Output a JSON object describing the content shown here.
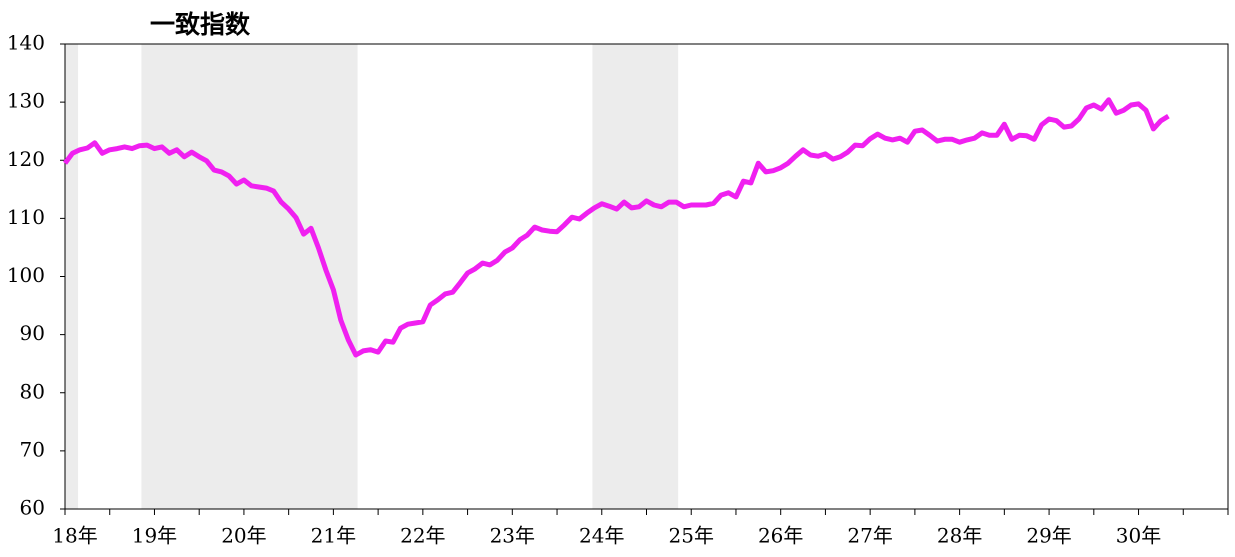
{
  "chart_data": {
    "type": "line",
    "title": "一致指数",
    "categories": [
      "18年",
      null,
      null,
      null,
      null,
      null,
      null,
      null,
      null,
      null,
      null,
      null,
      "19年",
      null,
      null,
      null,
      null,
      null,
      null,
      null,
      null,
      null,
      null,
      null,
      "20年",
      null,
      null,
      null,
      null,
      null,
      null,
      null,
      null,
      null,
      null,
      null,
      "21年",
      null,
      null,
      null,
      null,
      null,
      null,
      null,
      null,
      null,
      null,
      null,
      "22年",
      null,
      null,
      null,
      null,
      null,
      null,
      null,
      null,
      null,
      null,
      null,
      "23年",
      null,
      null,
      null,
      null,
      null,
      null,
      null,
      null,
      null,
      null,
      null,
      "24年",
      null,
      null,
      null,
      null,
      null,
      null,
      null,
      null,
      null,
      null,
      null,
      "25年",
      null,
      null,
      null,
      null,
      null,
      null,
      null,
      null,
      null,
      null,
      null,
      "26年",
      null,
      null,
      null,
      null,
      null,
      null,
      null,
      null,
      null,
      null,
      null,
      "27年",
      null,
      null,
      null,
      null,
      null,
      null,
      null,
      null,
      null,
      null,
      null,
      "28年",
      null,
      null,
      null,
      null,
      null,
      null,
      null,
      null,
      null,
      null,
      null,
      "29年",
      null,
      null,
      null,
      null,
      null,
      null,
      null,
      null,
      null,
      null,
      null,
      "30年",
      null,
      null,
      null,
      null
    ],
    "series": [
      {
        "color": "#f020f0",
        "values": [
          119.5,
          121.2,
          121.8,
          122.1,
          123,
          121.2,
          121.8,
          122,
          122.3,
          122,
          122.5,
          122.6,
          122,
          122.3,
          121.2,
          121.8,
          120.6,
          121.4,
          120.6,
          119.9,
          118.3,
          118,
          117.3,
          115.9,
          116.6,
          115.6,
          115.4,
          115.2,
          114.7,
          112.8,
          111.6,
          110.1,
          107.3,
          108.3,
          104.9,
          101.1,
          97.7,
          92.5,
          89.1,
          86.5,
          87.2,
          87.4,
          87,
          88.9,
          88.7,
          91.1,
          91.8,
          92,
          92.2,
          95.1,
          96,
          97,
          97.3,
          98.9,
          100.6,
          101.3,
          102.3,
          102,
          102.8,
          104.2,
          104.9,
          106.3,
          107.1,
          108.5,
          108,
          107.8,
          107.7,
          108.9,
          110.2,
          109.9,
          110.9,
          111.8,
          112.5,
          112.1,
          111.6,
          112.8,
          111.8,
          112,
          113,
          112.3,
          112,
          112.8,
          112.8,
          112,
          112.3,
          112.3,
          112.3,
          112.6,
          114,
          114.4,
          113.7,
          116.4,
          116.1,
          119.5,
          118,
          118.2,
          118.7,
          119.5,
          120.7,
          121.8,
          120.9,
          120.7,
          121.1,
          120.2,
          120.6,
          121.4,
          122.6,
          122.5,
          123.7,
          124.5,
          123.8,
          123.5,
          123.8,
          123.1,
          125,
          125.2,
          124.3,
          123.3,
          123.6,
          123.6,
          123.1,
          123.5,
          123.8,
          124.7,
          124.3,
          124.3,
          126.2,
          123.6,
          124.3,
          124.2,
          123.6,
          126.1,
          127.1,
          126.8,
          125.7,
          125.9,
          127.1,
          129,
          129.5,
          128.8,
          130.4,
          128.1,
          128.6,
          129.5,
          129.7,
          128.6,
          125.4,
          126.8,
          127.6
        ]
      }
    ],
    "xlim": [
      0,
      156
    ],
    "shaded_periods": [
      [
        0,
        1.75
      ],
      [
        10.25,
        39.25
      ],
      [
        70.75,
        82.25
      ]
    ],
    "shade_color": "#ececec",
    "ylim": [
      60,
      140
    ],
    "yticks": [
      60,
      70,
      80,
      90,
      100,
      110,
      120,
      130,
      140
    ],
    "grid": false
  }
}
